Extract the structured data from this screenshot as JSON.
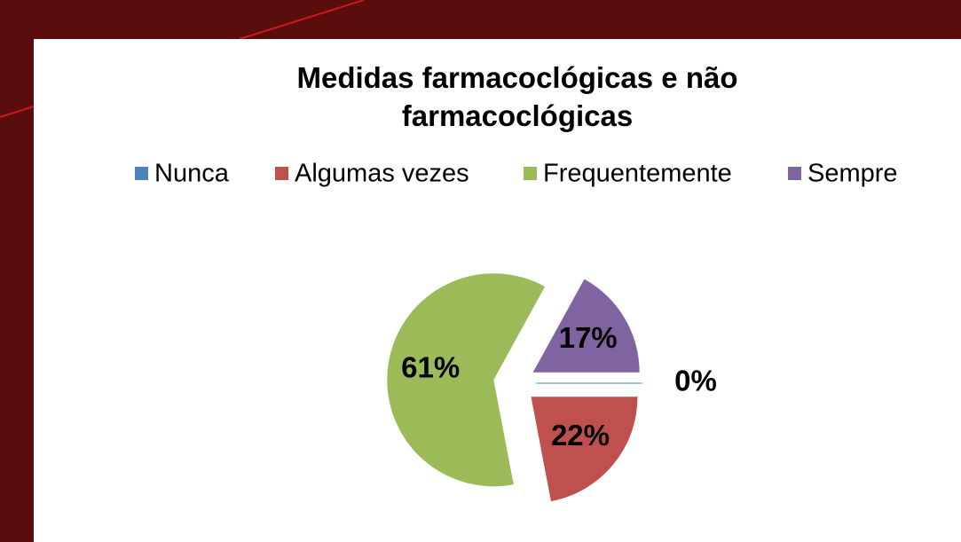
{
  "chart_data": {
    "type": "pie",
    "title": "Medidas farmacoclógicas e não farmacoclógicas",
    "categories": [
      "Nunca",
      "Algumas vezes",
      "Frequentemente",
      "Sempre"
    ],
    "values": [
      0,
      22,
      61,
      17
    ],
    "value_labels": [
      "0%",
      "22%",
      "61%",
      "17%"
    ],
    "colors": [
      "#4f81bd",
      "#c0504d",
      "#9bbb59",
      "#8064a2"
    ],
    "legend": "top"
  }
}
